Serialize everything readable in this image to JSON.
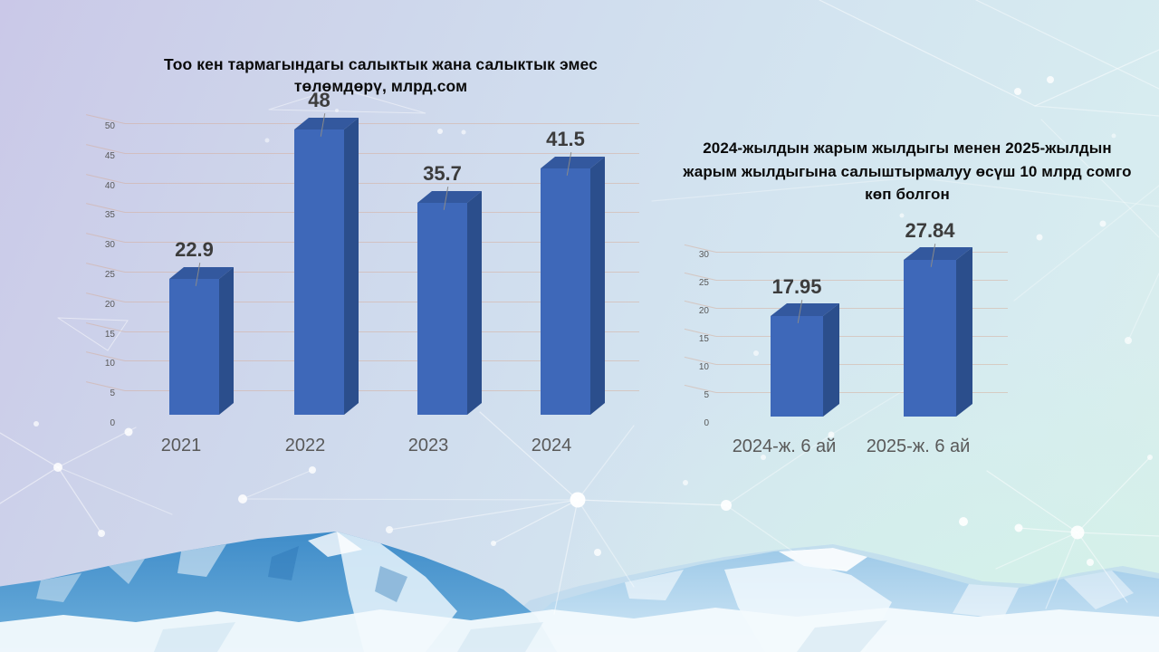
{
  "colors": {
    "bar_front": "#3e68b9",
    "bar_top": "#33589e",
    "bar_side": "#2b4e8c",
    "value_label": "#3c3c3c",
    "axis_label": "#595959",
    "title_text": "#0a0a0a",
    "gridline": "rgba(214,172,152,0.5)",
    "leader_line": "#8a8a8a",
    "background_top_left": "#cac8e8",
    "background_top_right": "#cfe1ec",
    "background_bottom_right": "#d9efeb",
    "network_line": "#ffffff",
    "mountain_blue": "#3f8cc9",
    "mountain_light_blue": "#9dc9e8",
    "snow_white": "#f3fafd"
  },
  "chart_data": [
    {
      "type": "bar",
      "style": "3d-column",
      "title": "Тоо кен тармагындагы салыктык жана салыктык эмес төлөмдөрү, млрд.сом",
      "title_display": "Тоо кен тармагындагы салыктык жана салыктык эмес\nтөлөмдөрү, млрд.сом",
      "categories": [
        "2021",
        "2022",
        "2023",
        "2024"
      ],
      "values": [
        22.9,
        48,
        35.7,
        41.5
      ],
      "value_labels": [
        "22.9",
        "48",
        "35.7",
        "41.5"
      ],
      "ylim": [
        0,
        50
      ],
      "ystep": 5,
      "grid": true,
      "legend": false,
      "xlabel": "",
      "ylabel": ""
    },
    {
      "type": "bar",
      "style": "3d-column",
      "title": "2024-жылдын жарым жылдыгы менен 2025-жылдын жарым жылдыгына салыштырмалуу өсүш 10 млрд сомго көп болгон",
      "title_display": "2024-жылдын жарым жылдыгы менен 2025-жылдын\nжарым жылдыгына салыштырмалуу өсүш 10 млрд сомго\nкөп болгон",
      "categories": [
        "2024-ж. 6 ай",
        "2025-ж. 6 ай"
      ],
      "values": [
        17.95,
        27.84
      ],
      "value_labels": [
        "17.95",
        "27.84"
      ],
      "ylim": [
        0,
        30
      ],
      "ystep": 5,
      "grid": true,
      "legend": false,
      "xlabel": "",
      "ylabel": ""
    }
  ]
}
